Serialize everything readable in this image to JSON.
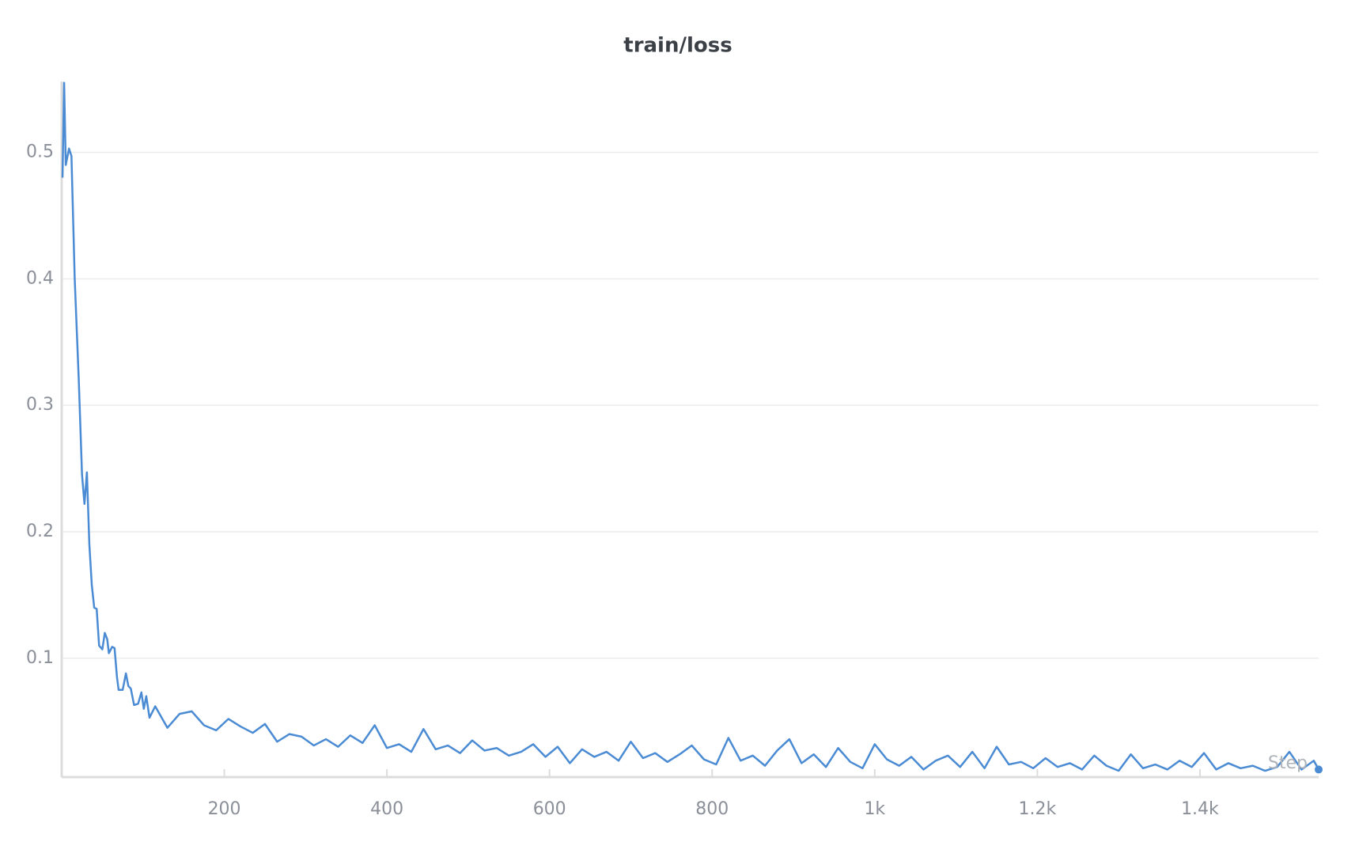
{
  "chart_data": {
    "type": "line",
    "title": "train/loss",
    "x_label": "Step",
    "color": "#4a8bd4",
    "grid": true,
    "x": [
      1,
      3,
      5,
      9,
      12,
      16,
      21,
      25,
      28,
      31,
      34,
      37,
      40,
      43,
      46,
      50,
      53,
      56,
      58,
      62,
      65,
      68,
      70,
      75,
      79,
      82,
      85,
      89,
      94,
      98,
      101,
      104,
      108,
      115,
      130,
      145,
      160,
      175,
      190,
      205,
      220,
      235,
      250,
      265,
      280,
      295,
      310,
      325,
      340,
      355,
      370,
      385,
      400,
      415,
      430,
      445,
      460,
      475,
      490,
      505,
      520,
      535,
      550,
      565,
      580,
      595,
      610,
      625,
      640,
      655,
      670,
      685,
      700,
      715,
      730,
      745,
      760,
      775,
      790,
      805,
      820,
      835,
      850,
      865,
      880,
      895,
      910,
      925,
      940,
      955,
      970,
      985,
      1000,
      1015,
      1030,
      1045,
      1060,
      1075,
      1090,
      1105,
      1120,
      1135,
      1150,
      1165,
      1180,
      1195,
      1210,
      1225,
      1240,
      1255,
      1270,
      1285,
      1300,
      1315,
      1330,
      1345,
      1360,
      1375,
      1390,
      1405,
      1420,
      1435,
      1450,
      1465,
      1480,
      1495,
      1510,
      1525,
      1540,
      1546
    ],
    "values": [
      0.48,
      0.555,
      0.49,
      0.503,
      0.497,
      0.4,
      0.32,
      0.245,
      0.222,
      0.247,
      0.19,
      0.158,
      0.14,
      0.139,
      0.11,
      0.107,
      0.12,
      0.115,
      0.104,
      0.109,
      0.108,
      0.085,
      0.075,
      0.075,
      0.088,
      0.078,
      0.076,
      0.063,
      0.064,
      0.073,
      0.06,
      0.07,
      0.053,
      0.062,
      0.045,
      0.056,
      0.058,
      0.047,
      0.043,
      0.052,
      0.046,
      0.041,
      0.048,
      0.034,
      0.04,
      0.038,
      0.031,
      0.036,
      0.03,
      0.039,
      0.033,
      0.047,
      0.029,
      0.032,
      0.026,
      0.044,
      0.028,
      0.031,
      0.025,
      0.035,
      0.027,
      0.029,
      0.023,
      0.026,
      0.032,
      0.022,
      0.03,
      0.017,
      0.028,
      0.022,
      0.026,
      0.019,
      0.034,
      0.021,
      0.025,
      0.018,
      0.024,
      0.031,
      0.02,
      0.016,
      0.037,
      0.019,
      0.023,
      0.015,
      0.027,
      0.036,
      0.017,
      0.024,
      0.014,
      0.029,
      0.018,
      0.013,
      0.032,
      0.02,
      0.015,
      0.022,
      0.012,
      0.019,
      0.023,
      0.014,
      0.026,
      0.013,
      0.03,
      0.016,
      0.018,
      0.013,
      0.021,
      0.014,
      0.017,
      0.012,
      0.023,
      0.015,
      0.011,
      0.024,
      0.013,
      0.016,
      0.012,
      0.019,
      0.014,
      0.025,
      0.012,
      0.017,
      0.013,
      0.015,
      0.011,
      0.014,
      0.026,
      0.012,
      0.019,
      0.012
    ],
    "xlim": [
      0,
      1546
    ],
    "ylim": [
      0.006,
      0.556
    ],
    "xticks": [
      200,
      400,
      600,
      800,
      {
        "value": 1000,
        "label": "1k"
      },
      {
        "value": 1200,
        "label": "1.2k"
      },
      {
        "value": 1400,
        "label": "1.4k"
      }
    ],
    "yticks": [
      0.1,
      0.2,
      0.3,
      0.4,
      0.5
    ]
  }
}
